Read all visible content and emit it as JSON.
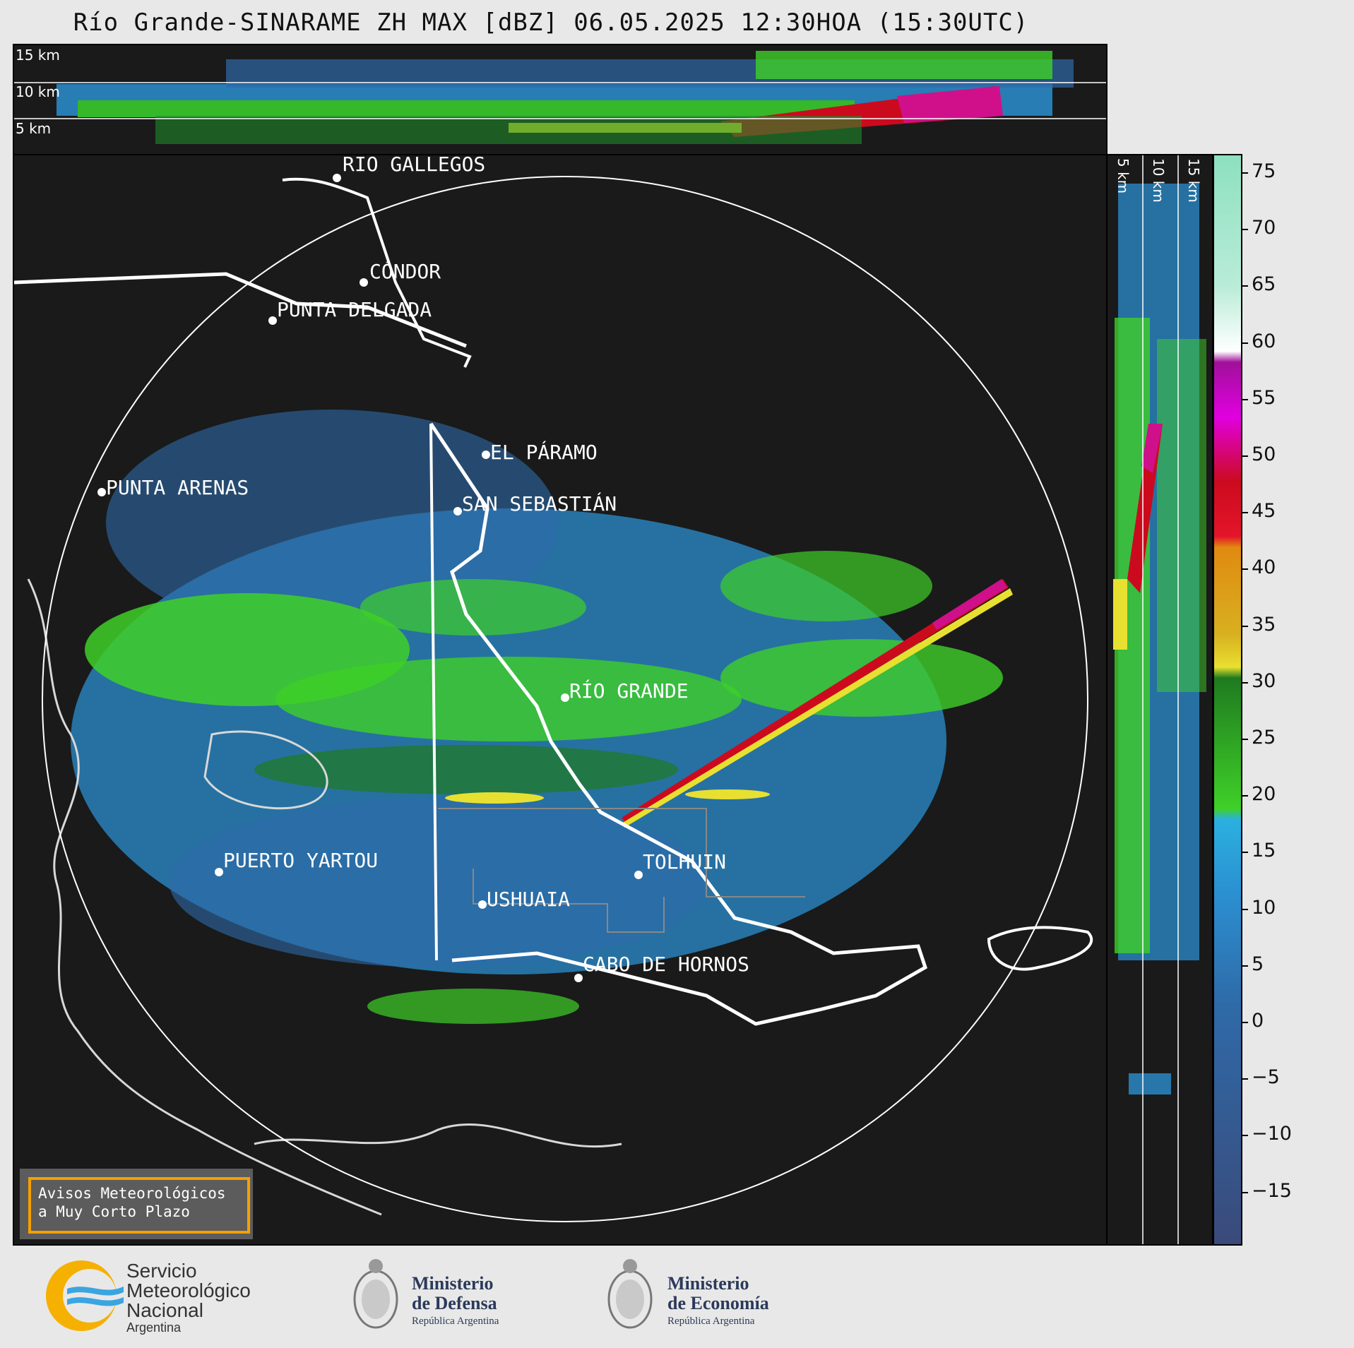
{
  "title": "Río Grande-SINARAME ZH MAX [dBZ] 06.05.2025 12:30HOA (15:30UTC)",
  "top_panel": {
    "height_labels": [
      "15 km",
      "10 km",
      "5 km"
    ]
  },
  "side_panel": {
    "height_labels": [
      "5 km",
      "10 km",
      "15 km"
    ]
  },
  "cities": [
    {
      "name": "RÍO GALLEGOS"
    },
    {
      "name": "CÓNDOR"
    },
    {
      "name": "PUNTA DELGADA"
    },
    {
      "name": "EL PÁRAMO"
    },
    {
      "name": "PUNTA ARENAS"
    },
    {
      "name": "SAN SEBASTIÁN"
    },
    {
      "name": "RÍO GRANDE"
    },
    {
      "name": "PUERTO YARTOU"
    },
    {
      "name": "TOLHUIN"
    },
    {
      "name": "USHUAIA"
    },
    {
      "name": "CABO DE HORNOS"
    }
  ],
  "colorbar": {
    "unit": "dBZ",
    "ticks": [
      "75",
      "70",
      "65",
      "60",
      "55",
      "50",
      "45",
      "40",
      "35",
      "30",
      "25",
      "20",
      "15",
      "10",
      "5",
      "0",
      "−5",
      "−10",
      "−15"
    ],
    "colors": {
      "below_zero": "#3a4a7a",
      "blue_low": "#2f6aa8",
      "blue_mid": "#2b8fd0",
      "green": "#3fd028",
      "dark_green": "#1f7a1f",
      "yellow": "#e8e030",
      "orange": "#e08a10",
      "red": "#cc0a1e",
      "magenta": "#e000e0",
      "white": "#ffffff",
      "aqua": "#8de0c0"
    }
  },
  "aviso": {
    "line1": "Avisos Meteorológicos",
    "line2": "a Muy Corto Plazo"
  },
  "logos": {
    "smn": {
      "line1": "Servicio",
      "line2": "Meteorológico",
      "line3": "Nacional",
      "line4": "Argentina"
    },
    "defensa": {
      "line1": "Ministerio",
      "line2": "de Defensa",
      "line3": "República Argentina"
    },
    "economia": {
      "line1": "Ministerio",
      "line2": "de Economía",
      "line3": "República Argentina"
    }
  }
}
